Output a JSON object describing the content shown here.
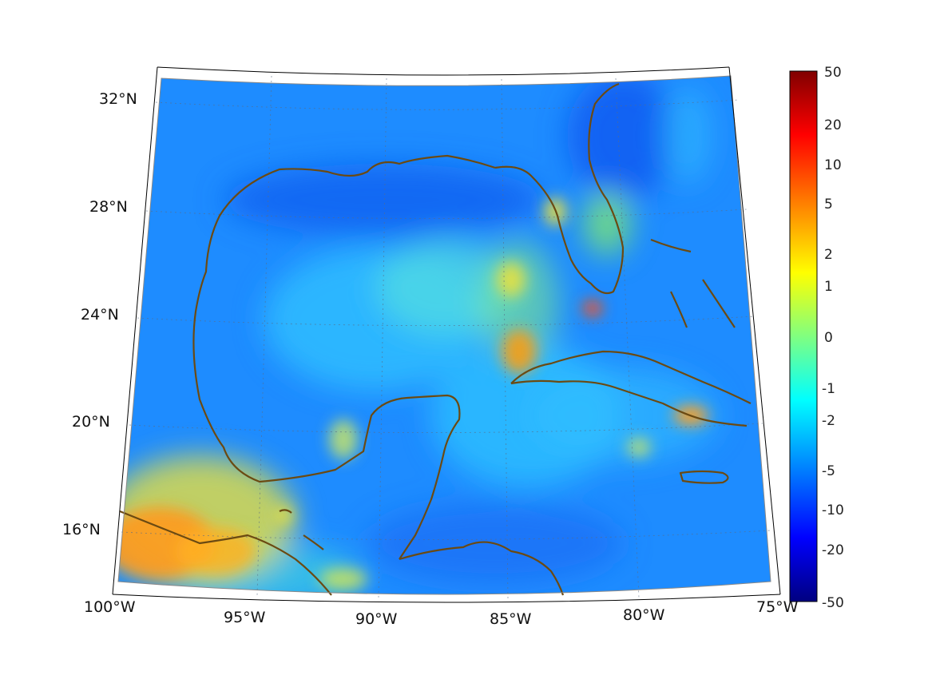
{
  "map": {
    "lat_labels": [
      "32°N",
      "28°N",
      "24°N",
      "20°N",
      "16°N"
    ],
    "lon_labels": [
      "100°W",
      "95°W",
      "90°W",
      "85°W",
      "80°W",
      "75°W"
    ],
    "coastline_color": "#6b4a12",
    "ocean_base_color": "#1e8cff"
  },
  "colorbar": {
    "labels": [
      "50",
      "20",
      "10",
      "5",
      "2",
      "1",
      "0",
      "-1",
      "-2",
      "-5",
      "-10",
      "-20",
      "-50"
    ],
    "colors_top_to_bottom": [
      "#800000",
      "#ff0000",
      "#ff8000",
      "#ffff00",
      "#80ff80",
      "#00ffff",
      "#0080ff",
      "#0000ff",
      "#000080"
    ]
  }
}
